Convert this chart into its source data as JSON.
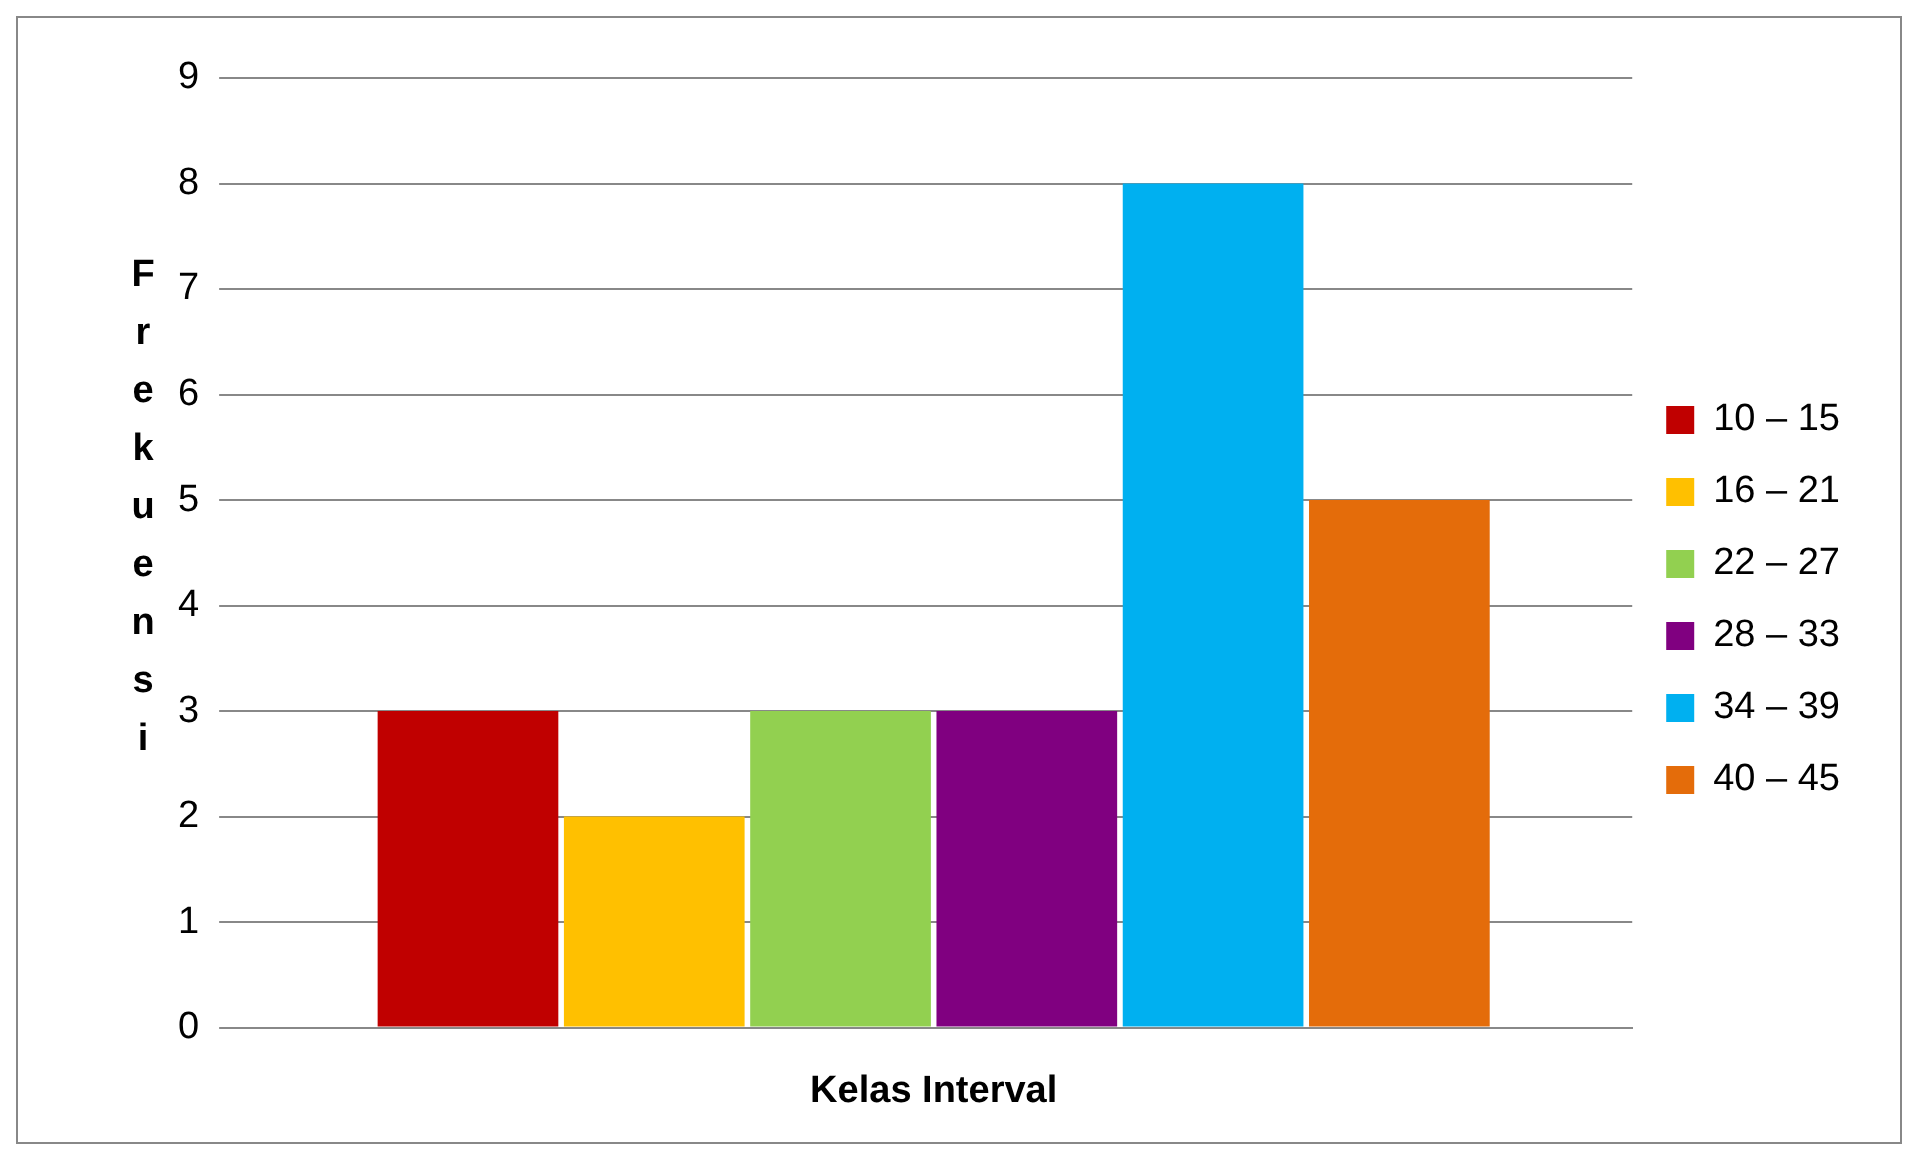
{
  "chart_data": {
    "type": "bar",
    "xlabel": "Kelas Interval",
    "ylabel": "Frekuensi",
    "categories": [
      null
    ],
    "series": [
      {
        "name": "10 – 15",
        "color": "#c00000",
        "values": [
          3
        ]
      },
      {
        "name": "16 – 21",
        "color": "#ffc000",
        "values": [
          2
        ]
      },
      {
        "name": "22 – 27",
        "color": "#92d050",
        "values": [
          3
        ]
      },
      {
        "name": "28 – 33",
        "color": "#800080",
        "values": [
          3
        ]
      },
      {
        "name": "34 – 39",
        "color": "#00b0f0",
        "values": [
          8
        ]
      },
      {
        "name": "40 – 45",
        "color": "#e46c0a",
        "values": [
          5
        ]
      }
    ],
    "ylim": [
      0,
      9
    ],
    "yticks": [
      0,
      1,
      2,
      3,
      4,
      5,
      6,
      7,
      8,
      9
    ],
    "grid": "y",
    "legend": "right"
  }
}
